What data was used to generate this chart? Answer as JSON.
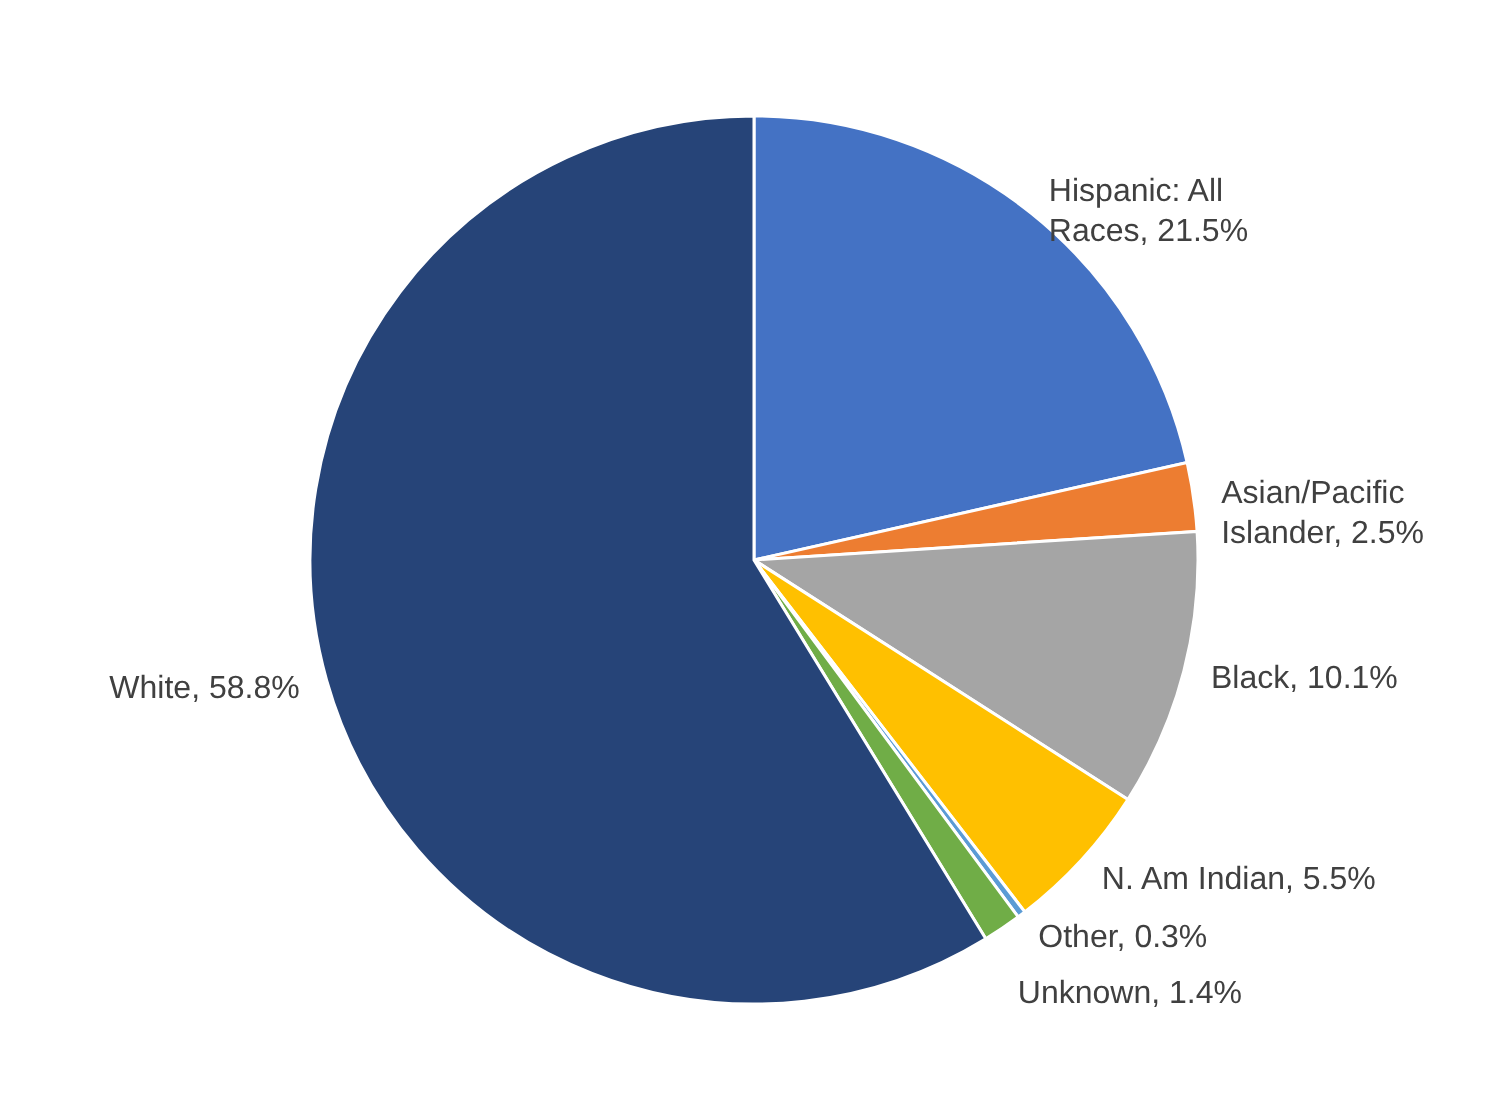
{
  "chart_data": {
    "type": "pie",
    "categories": [
      "Hispanic: All Races",
      "Asian/Pacific Islander",
      "Black",
      "N. Am Indian",
      "Other",
      "Unknown",
      "White"
    ],
    "values": [
      21.5,
      2.5,
      10.1,
      5.5,
      0.3,
      1.4,
      58.8
    ],
    "value_labels": [
      "21.5%",
      "2.5%",
      "10.1%",
      "5.5%",
      "0.3%",
      "1.4%",
      "58.8%"
    ],
    "colors": [
      "#4472c4",
      "#ed7d31",
      "#a5a5a5",
      "#ffc000",
      "#5b9bd5",
      "#70ad47",
      "#264478"
    ]
  }
}
